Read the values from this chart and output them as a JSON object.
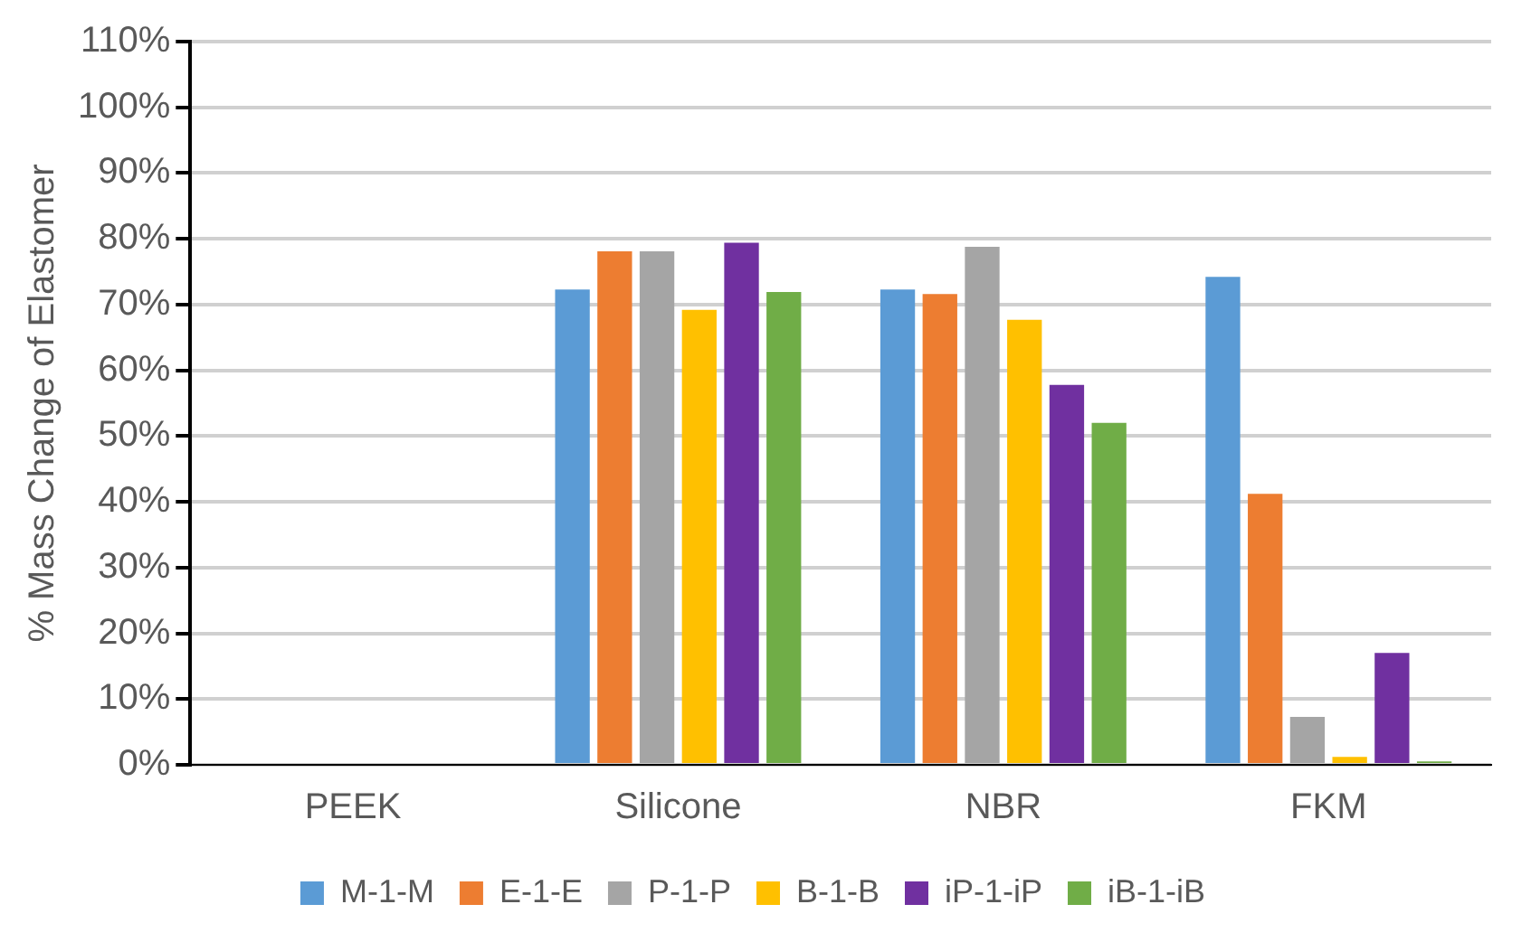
{
  "chart_data": {
    "type": "bar",
    "ylabel": "% Mass Change of Elastomer",
    "categories": [
      "PEEK",
      "Silicone",
      "NBR",
      "FKM"
    ],
    "series": [
      {
        "name": "M-1-M",
        "color": "#5b9bd5",
        "values": [
          0,
          72.3,
          72.3,
          74.2
        ]
      },
      {
        "name": "E-1-E",
        "color": "#ed7d31",
        "values": [
          0,
          78.1,
          71.6,
          41.2
        ]
      },
      {
        "name": "P-1-P",
        "color": "#a5a5a5",
        "values": [
          0,
          78.1,
          78.8,
          7.3
        ]
      },
      {
        "name": "B-1-B",
        "color": "#ffc000",
        "values": [
          0,
          69.2,
          67.7,
          1.2
        ]
      },
      {
        "name": "iP-1-iP",
        "color": "#7030a0",
        "values": [
          0,
          79.4,
          57.8,
          17.0
        ]
      },
      {
        "name": "iB-1-iB",
        "color": "#70ad47",
        "values": [
          0,
          71.9,
          52.0,
          0.5
        ]
      }
    ],
    "ylim": [
      0,
      110
    ],
    "yticks": [
      {
        "value": 0,
        "label": "0%"
      },
      {
        "value": 10,
        "label": "10%"
      },
      {
        "value": 20,
        "label": "20%"
      },
      {
        "value": 30,
        "label": "30%"
      },
      {
        "value": 40,
        "label": "40%"
      },
      {
        "value": 50,
        "label": "50%"
      },
      {
        "value": 60,
        "label": "60%"
      },
      {
        "value": 70,
        "label": "70%"
      },
      {
        "value": 80,
        "label": "80%"
      },
      {
        "value": 90,
        "label": "90%"
      },
      {
        "value": 100,
        "label": "100%"
      },
      {
        "value": 110,
        "label": "110%"
      }
    ],
    "grid": "y",
    "legend": "bottom"
  }
}
